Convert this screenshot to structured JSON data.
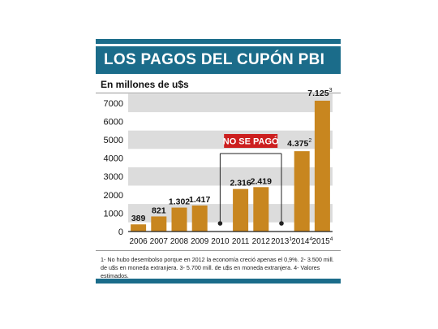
{
  "header": {
    "title": "LOS PAGOS DEL CUPÓN PBI",
    "subtitle": "En millones de u$s"
  },
  "chart_data": {
    "type": "bar",
    "categories": [
      "2006",
      "2007",
      "2008",
      "2009",
      "2010",
      "2011",
      "2012",
      "2013",
      "2014",
      "2015"
    ],
    "category_sup": [
      "",
      "",
      "",
      "",
      "",
      "",
      "",
      "1",
      "4",
      "4"
    ],
    "values": [
      389,
      821,
      1302,
      1417,
      0,
      2316,
      2419,
      0,
      4375,
      7125
    ],
    "value_labels": [
      "389",
      "821",
      "1.302",
      "1.417",
      "",
      "2.316",
      "2.419",
      "",
      "4.375",
      "7.125"
    ],
    "value_label_sup": [
      "",
      "",
      "",
      "",
      "",
      "",
      "",
      "",
      "2",
      "3"
    ],
    "y_ticks": [
      0,
      1000,
      2000,
      3000,
      4000,
      5000,
      6000,
      7000
    ],
    "y_tick_labels": [
      "0",
      "1000",
      "2000",
      "3000",
      "4000",
      "5000",
      "6000",
      "7000"
    ],
    "ylim": [
      0,
      7300
    ],
    "annotation": {
      "text": "NO SE PAGÓ",
      "from_category": "2010",
      "to_category": "2013"
    },
    "colors": {
      "bar": "#c8861f",
      "band": "#dcdcdc",
      "annotation_bg": "#cc1f1f",
      "accent": "#1b6c8a"
    }
  },
  "footnote": {
    "text": "1- No hubo desembolso porque en 2012 la economía creció apenas el 0,9%. 2- 3.500 mill. de u$s en moneda extranjera. 3- 5.700 mill. de u$s en moneda extranjera. 4- Valores estimados."
  }
}
